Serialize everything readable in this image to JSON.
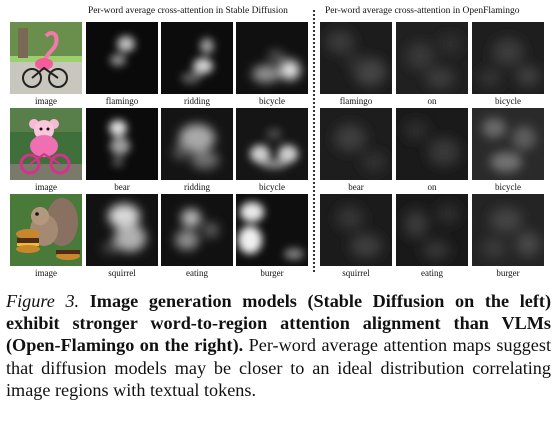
{
  "section_titles": {
    "stable_diffusion": "Per-word average cross-attention in Stable Diffusion",
    "openflamingo": "Per-word average cross-attention in OpenFlamingo"
  },
  "rows": [
    {
      "image_label": "image",
      "sd_words": [
        "flamingo",
        "ridding",
        "bicycle"
      ],
      "of_words": [
        "flamingo",
        "on",
        "bicycle"
      ]
    },
    {
      "image_label": "image",
      "sd_words": [
        "bear",
        "ridding",
        "bicycle"
      ],
      "of_words": [
        "bear",
        "on",
        "bicycle"
      ]
    },
    {
      "image_label": "image",
      "sd_words": [
        "squirrel",
        "eating",
        "burger"
      ],
      "of_words": [
        "squirrel",
        "eating",
        "burger"
      ]
    }
  ],
  "caption": {
    "figure_label": "Figure 3.",
    "bold_text": "Image generation models (Stable Diffusion on the left) exhibit stronger word-to-region attention alignment than VLMs (Open-Flamingo on the right).",
    "body_text": "Per-word average attention maps suggest that diffusion models may be closer to an ideal distribution correlating image regions with textual tokens."
  }
}
